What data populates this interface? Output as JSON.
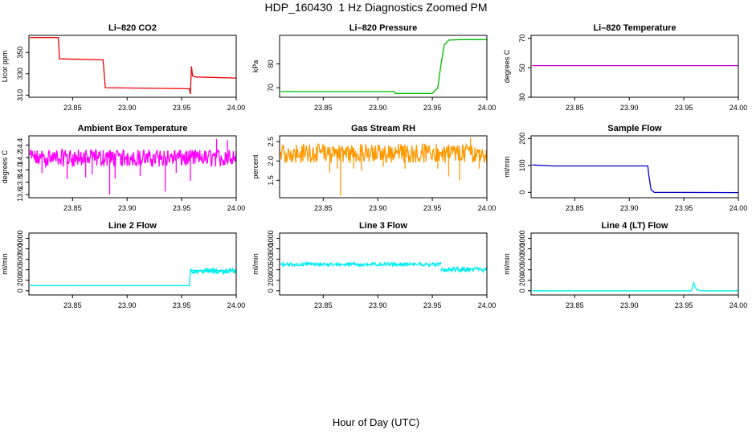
{
  "figure": {
    "title": "HDP_160430  1 Hz Diagnostics Zoomed PM",
    "xlabel": "Hour of Day (UTC)"
  },
  "chart_data": [
    {
      "type": "line",
      "title": "Li–820 CO2",
      "ylabel": "Licor ppm",
      "color": "#ee0000",
      "xlim": [
        23.81,
        24.0
      ],
      "ylim": [
        308,
        366
      ],
      "yticks": [
        310,
        330,
        350
      ],
      "xticks": [
        23.85,
        23.9,
        23.95,
        24.0
      ],
      "series": [
        {
          "x": [
            23.811,
            23.837,
            23.838,
            23.878,
            23.88,
            23.957,
            23.958,
            23.959,
            23.96,
            23.963,
            24.0
          ],
          "y": [
            364,
            364,
            344,
            343,
            317,
            316,
            311,
            337,
            328,
            327,
            326
          ]
        }
      ]
    },
    {
      "type": "line",
      "title": "Li–820 Pressure",
      "ylabel": "kPa",
      "color": "#00bb00",
      "xlim": [
        23.81,
        24.0
      ],
      "ylim": [
        66,
        92
      ],
      "yticks": [
        70,
        80
      ],
      "xticks": [
        23.85,
        23.9,
        23.95,
        24.0
      ],
      "series": [
        {
          "x": [
            23.811,
            23.915,
            23.916,
            23.95,
            23.955,
            23.958,
            23.961,
            23.965,
            23.975,
            24.0
          ],
          "y": [
            68.4,
            68.4,
            67.6,
            67.6,
            70,
            80,
            88,
            90,
            90.2,
            90.2
          ]
        }
      ]
    },
    {
      "type": "line",
      "title": "Li–820 Temperature",
      "ylabel": "degrees C",
      "color": "#cc00cc",
      "xlim": [
        23.81,
        24.0
      ],
      "ylim": [
        30,
        72
      ],
      "yticks": [
        30,
        50,
        70
      ],
      "xticks": [
        23.85,
        23.9,
        23.95,
        24.0
      ],
      "series": [
        {
          "x": [
            23.811,
            24.0
          ],
          "y": [
            51.5,
            51.5
          ]
        }
      ]
    },
    {
      "type": "line",
      "title": "Ambient Box Temperature",
      "ylabel": "degrees C",
      "color": "#ff00ff",
      "xlim": [
        23.81,
        24.0
      ],
      "ylim": [
        13.55,
        14.55
      ],
      "yticks": [
        13.6,
        13.8,
        14.0,
        14.2,
        14.4
      ],
      "xticks": [
        23.85,
        23.9,
        23.95,
        24.0
      ],
      "noise": {
        "x0": 23.811,
        "x1": 24.0,
        "base": 14.2,
        "low": 14.05,
        "high": 14.33,
        "n": 380
      },
      "spikes": {
        "x": [
          23.822,
          23.845,
          23.862,
          23.868,
          23.884,
          23.889,
          23.912,
          23.935,
          23.945,
          23.958,
          23.982,
          23.992
        ],
        "y": [
          13.95,
          13.85,
          13.88,
          13.93,
          13.6,
          13.86,
          13.9,
          13.65,
          13.95,
          13.82,
          14.5,
          14.48
        ]
      }
    },
    {
      "type": "line",
      "title": "Gas Stream RH",
      "ylabel": "percent",
      "color": "#ff9900",
      "xlim": [
        23.81,
        24.0
      ],
      "ylim": [
        1.05,
        2.65
      ],
      "yticks": [
        1.5,
        2.0,
        2.5
      ],
      "xticks": [
        23.85,
        23.9,
        23.95,
        24.0
      ],
      "noise": {
        "x0": 23.811,
        "x1": 24.0,
        "base": 2.2,
        "low": 1.95,
        "high": 2.45,
        "n": 380
      },
      "spikes": {
        "x": [
          23.856,
          23.863,
          23.866,
          23.878,
          23.885,
          23.905,
          23.925,
          23.955,
          23.965,
          23.975,
          23.985,
          23.993
        ],
        "y": [
          1.7,
          1.8,
          1.1,
          1.8,
          1.75,
          1.85,
          1.8,
          1.8,
          1.6,
          1.5,
          2.6,
          1.8
        ]
      }
    },
    {
      "type": "line",
      "title": "Sample Flow",
      "ylabel": "ml/min",
      "color": "#0000cc",
      "xlim": [
        23.81,
        24.0
      ],
      "ylim": [
        -20,
        210
      ],
      "yticks": [
        0,
        100,
        200
      ],
      "xticks": [
        23.85,
        23.9,
        23.95,
        24.0
      ],
      "series": [
        {
          "x": [
            23.811,
            23.83,
            23.917,
            23.918,
            23.92,
            23.923,
            24.0
          ],
          "y": [
            102,
            98,
            98,
            60,
            10,
            0,
            -1
          ]
        }
      ]
    },
    {
      "type": "line",
      "title": "Line 2 Flow",
      "ylabel": "ml/min",
      "color": "#00eeee",
      "xlim": [
        23.81,
        24.0
      ],
      "ylim": [
        -80,
        1100
      ],
      "yticks": [
        0,
        200,
        400,
        600,
        800,
        1000
      ],
      "xticks": [
        23.85,
        23.9,
        23.95,
        24.0
      ],
      "series": [
        {
          "x": [
            23.811,
            23.957,
            23.958,
            24.0
          ],
          "y": [
            100,
            100,
            390,
            380
          ]
        }
      ],
      "noise": {
        "x0": 23.958,
        "x1": 24.0,
        "base": 370,
        "low": 330,
        "high": 430,
        "n": 90
      }
    },
    {
      "type": "line",
      "title": "Line 3 Flow",
      "ylabel": "ml/min",
      "color": "#00eeee",
      "xlim": [
        23.81,
        24.0
      ],
      "ylim": [
        -80,
        1100
      ],
      "yticks": [
        0,
        200,
        400,
        600,
        800,
        1000
      ],
      "xticks": [
        23.85,
        23.9,
        23.95,
        24.0
      ],
      "noise_segments": [
        {
          "x0": 23.811,
          "x1": 23.958,
          "base": 500,
          "low": 470,
          "high": 540,
          "n": 300
        },
        {
          "x0": 23.958,
          "x1": 24.0,
          "base": 400,
          "low": 350,
          "high": 450,
          "n": 90
        }
      ]
    },
    {
      "type": "line",
      "title": "Line 4 (LT) Flow",
      "ylabel": "ml/min",
      "color": "#00eeee",
      "xlim": [
        23.81,
        24.0
      ],
      "ylim": [
        -80,
        1100
      ],
      "yticks": [
        0,
        200,
        400,
        600,
        800,
        1000
      ],
      "xticks": [
        23.85,
        23.9,
        23.95,
        24.0
      ],
      "series": [
        {
          "x": [
            23.811,
            23.957,
            23.958,
            23.959,
            23.96,
            23.962,
            23.966,
            24.0
          ],
          "y": [
            0,
            0,
            60,
            150,
            90,
            20,
            0,
            0
          ]
        }
      ]
    }
  ]
}
